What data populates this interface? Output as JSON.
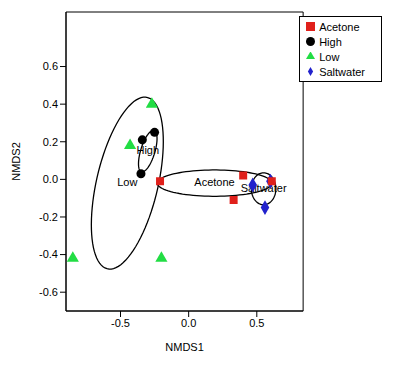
{
  "chart_data": {
    "type": "scatter",
    "x_label": "NMDS1",
    "y_label": "NMDS2",
    "xlim": [
      -0.9,
      0.84
    ],
    "ylim": [
      -0.7,
      0.89
    ],
    "xticks": [
      -0.5,
      {
        "value": 0,
        "label": "0.0"
      },
      0.5
    ],
    "yticks": [
      -0.6,
      -0.4,
      -0.2,
      {
        "value": 0,
        "label": "0.0"
      },
      0.2,
      0.4,
      0.6
    ],
    "legend": "upper right",
    "series": [
      {
        "name": "Saltwater",
        "color": "#2222cc",
        "marker": "diamond",
        "x": [
          0.47,
          0.56,
          0.6
        ],
        "y": [
          -0.03,
          -0.15,
          -0.01
        ],
        "ellipse": {
          "center": [
            0.55,
            -0.05
          ],
          "radii": [
            0.09,
            0.085
          ],
          "angle": 0
        }
      },
      {
        "name": "Acetone",
        "color": "#e0201b",
        "marker": "square",
        "x": [
          -0.21,
          0.4,
          0.33,
          0.61
        ],
        "y": [
          -0.01,
          0.02,
          -0.11,
          -0.01
        ],
        "ellipse": {
          "center": [
            0.19,
            -0.02
          ],
          "radii": [
            0.42,
            0.07
          ],
          "angle": 0
        }
      },
      {
        "name": "Low",
        "color": "#22dd44",
        "marker": "triangle",
        "x": [
          -0.27,
          -0.43,
          -0.85,
          -0.2
        ],
        "y": [
          0.4,
          0.18,
          -0.42,
          -0.42
        ],
        "ellipse": {
          "center": [
            -0.45,
            -0.02
          ],
          "radii": [
            0.48,
            0.22
          ],
          "angle": 70
        }
      },
      {
        "name": "High",
        "color": "#000000",
        "marker": "circle",
        "x": [
          -0.34,
          -0.25,
          -0.35
        ],
        "y": [
          0.21,
          0.25,
          0.03
        ],
        "ellipse": {
          "center": [
            -0.3,
            0.15
          ],
          "radii": [
            0.12,
            0.05
          ],
          "angle": 65
        }
      }
    ]
  }
}
